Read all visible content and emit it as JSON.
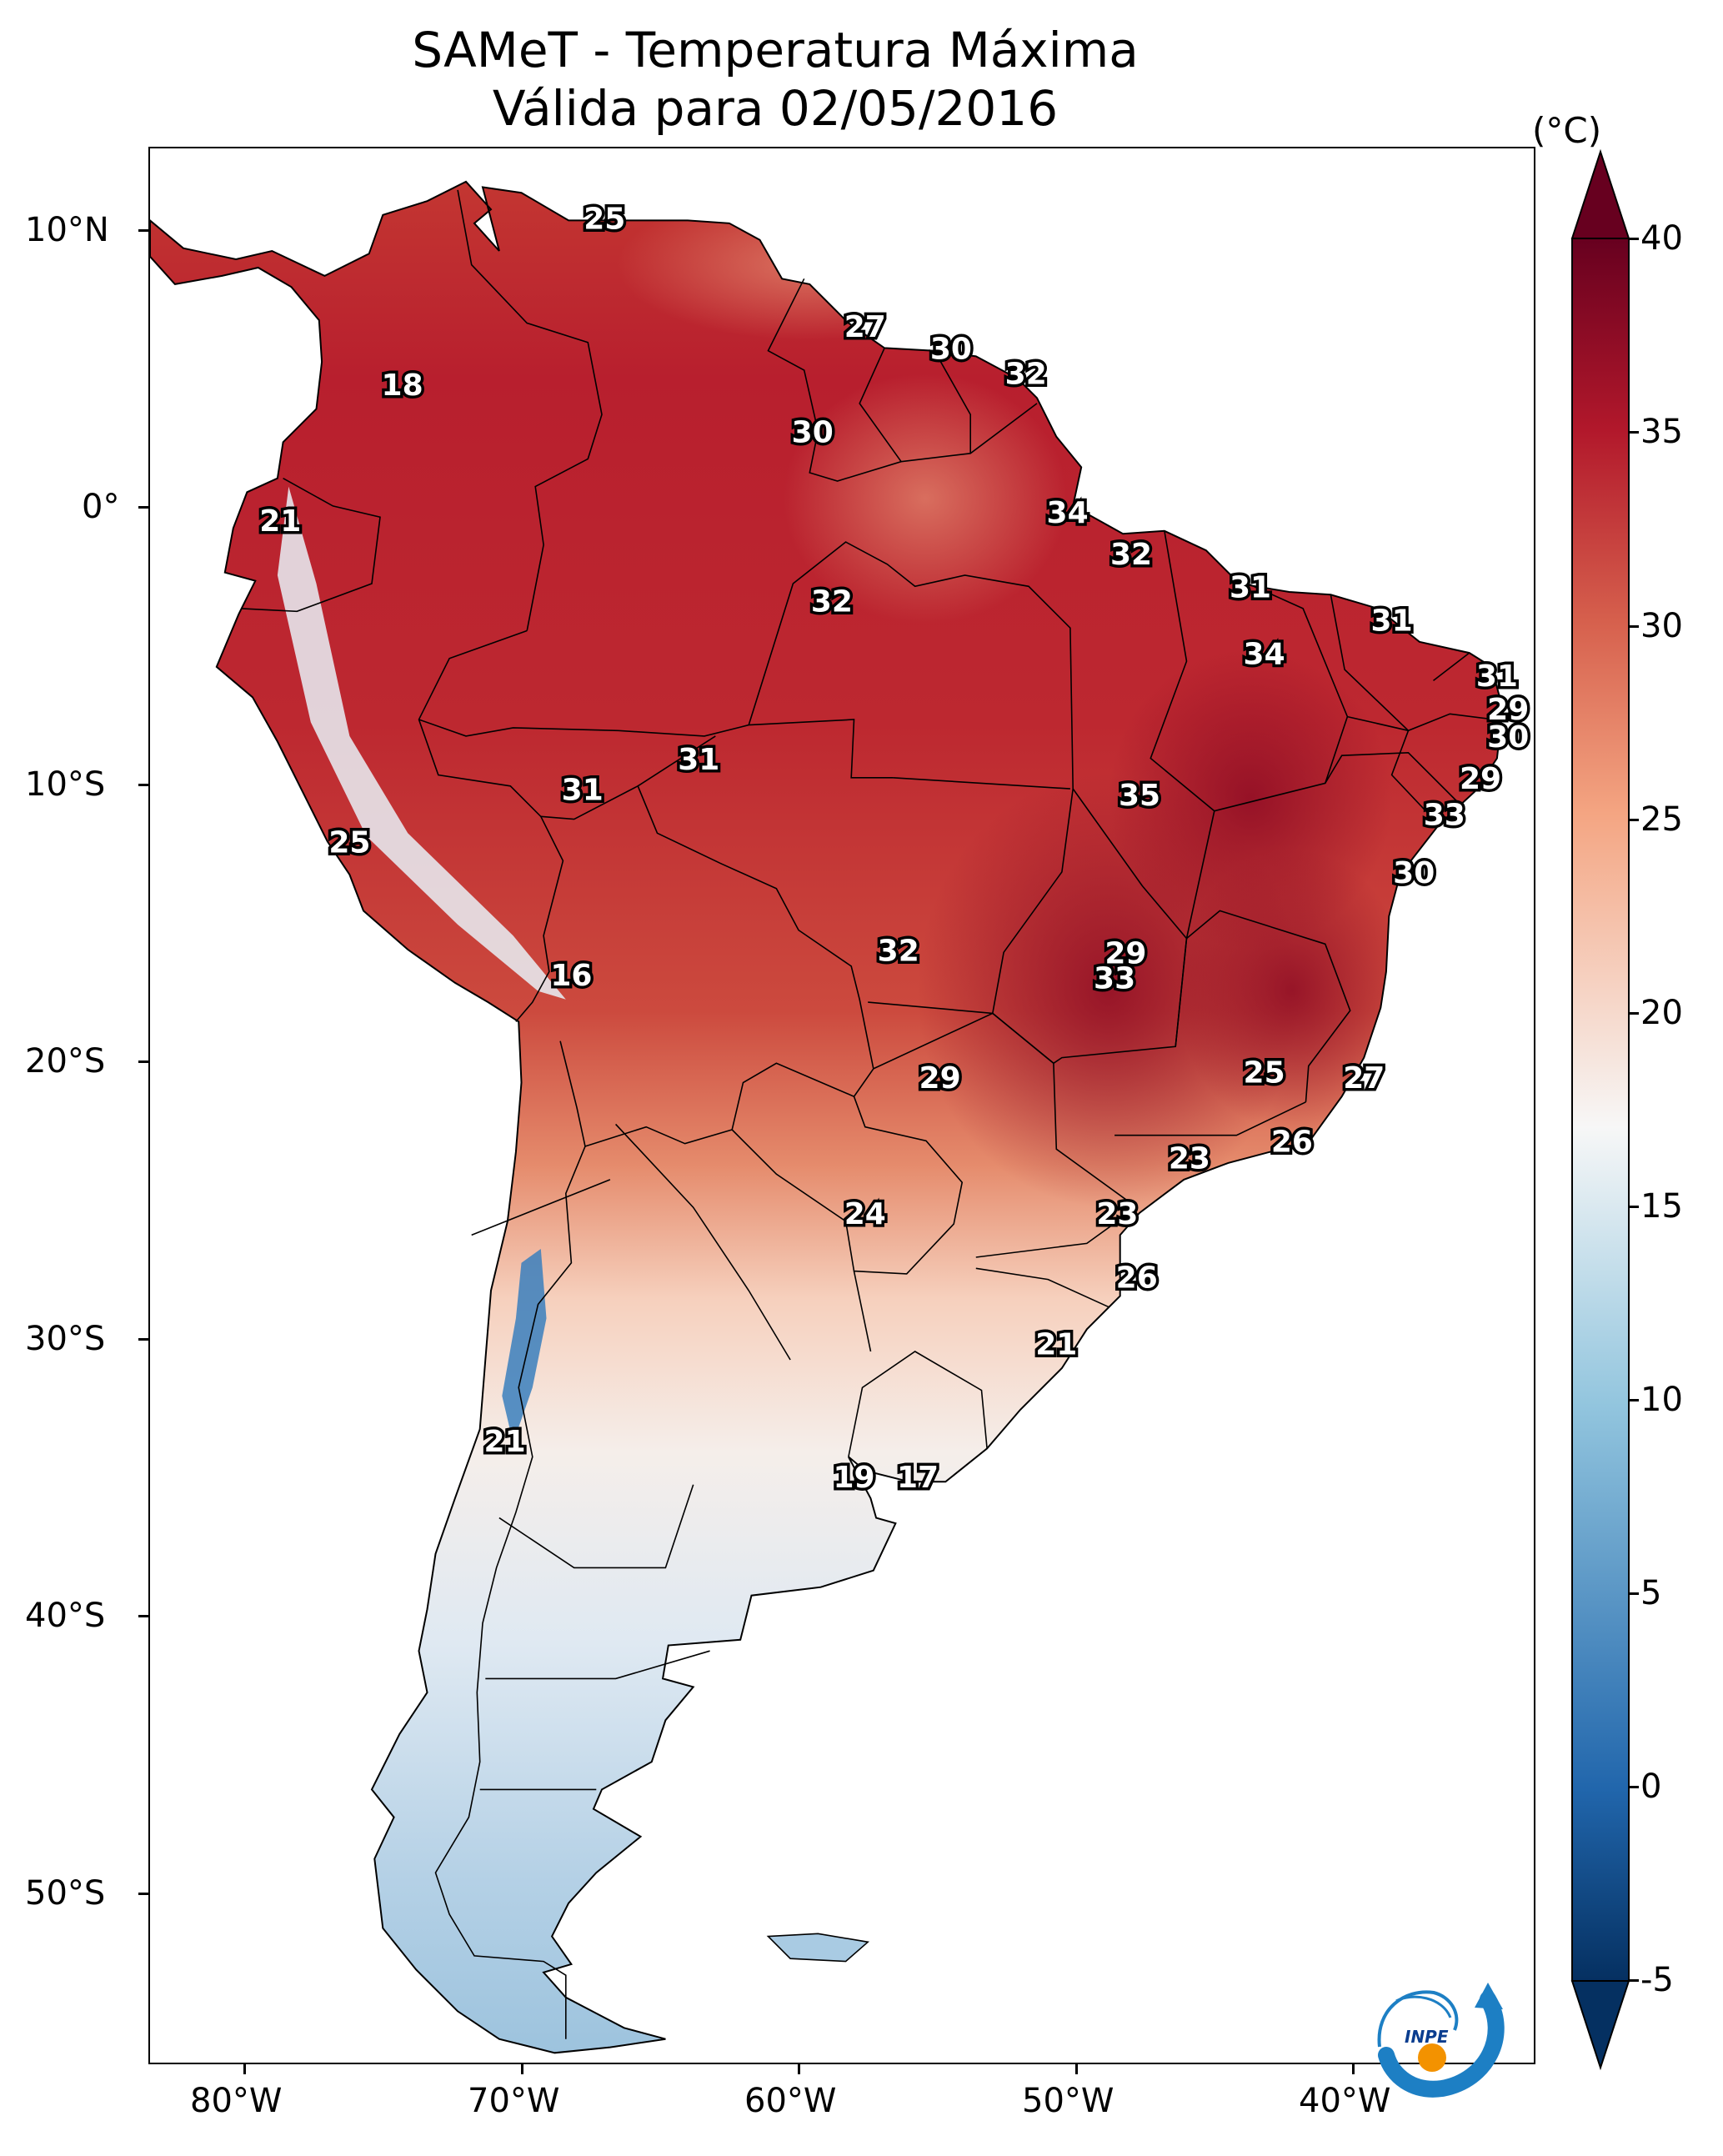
{
  "title_line1": "SAMeT - Temperatura Máxima",
  "title_line2": "Válida para 02/05/2016",
  "colorbar": {
    "unit": "(°C)",
    "ticks": [
      "40",
      "35",
      "30",
      "25",
      "20",
      "15",
      "10",
      "5",
      "0",
      "-5"
    ],
    "range": [
      -5,
      40
    ],
    "extend": "both",
    "colors": {
      "minus5": "#053061",
      "zero": "#2166ac",
      "ten": "#92c5de",
      "seventeen": "#f7f7f7",
      "twentyfive": "#f4a582",
      "thirty": "#d6604d",
      "thirtyfive": "#b2182b",
      "forty": "#67001f"
    }
  },
  "axes": {
    "lat_labels": [
      "10°N",
      "0°",
      "10°S",
      "20°S",
      "30°S",
      "40°S",
      "50°S"
    ],
    "lon_labels": [
      "80°W",
      "70°W",
      "60°W",
      "50°W",
      "40°W"
    ]
  },
  "logo_text": "INPE",
  "point_labels": [
    {
      "value": "25",
      "lon": -67.2,
      "lat": 10.6
    },
    {
      "value": "27",
      "lon": -57.8,
      "lat": 6.7
    },
    {
      "value": "30",
      "lon": -54.7,
      "lat": 5.9
    },
    {
      "value": "32",
      "lon": -52.0,
      "lat": 5.0
    },
    {
      "value": "18",
      "lon": -74.5,
      "lat": 4.6
    },
    {
      "value": "30",
      "lon": -59.7,
      "lat": 2.9
    },
    {
      "value": "34",
      "lon": -50.5,
      "lat": 0.0
    },
    {
      "value": "21",
      "lon": -78.9,
      "lat": -0.3
    },
    {
      "value": "32",
      "lon": -48.2,
      "lat": -1.5
    },
    {
      "value": "31",
      "lon": -43.9,
      "lat": -2.7
    },
    {
      "value": "32",
      "lon": -59.0,
      "lat": -3.2
    },
    {
      "value": "31",
      "lon": -38.8,
      "lat": -3.9
    },
    {
      "value": "34",
      "lon": -43.4,
      "lat": -5.1
    },
    {
      "value": "31",
      "lon": -35.0,
      "lat": -5.9
    },
    {
      "value": "29",
      "lon": -34.6,
      "lat": -7.1
    },
    {
      "value": "30",
      "lon": -34.6,
      "lat": -8.1
    },
    {
      "value": "31",
      "lon": -63.8,
      "lat": -8.9
    },
    {
      "value": "29",
      "lon": -35.6,
      "lat": -9.6
    },
    {
      "value": "31",
      "lon": -68.0,
      "lat": -10.0
    },
    {
      "value": "35",
      "lon": -47.9,
      "lat": -10.2
    },
    {
      "value": "33",
      "lon": -36.9,
      "lat": -10.9
    },
    {
      "value": "25",
      "lon": -76.4,
      "lat": -11.9
    },
    {
      "value": "30",
      "lon": -38.0,
      "lat": -13.0
    },
    {
      "value": "32",
      "lon": -56.6,
      "lat": -15.8
    },
    {
      "value": "29",
      "lon": -48.4,
      "lat": -15.9
    },
    {
      "value": "16",
      "lon": -68.4,
      "lat": -16.7
    },
    {
      "value": "33",
      "lon": -48.8,
      "lat": -16.8
    },
    {
      "value": "29",
      "lon": -55.1,
      "lat": -20.4
    },
    {
      "value": "25",
      "lon": -43.4,
      "lat": -20.2
    },
    {
      "value": "27",
      "lon": -39.8,
      "lat": -20.4
    },
    {
      "value": "26",
      "lon": -42.4,
      "lat": -22.7
    },
    {
      "value": "23",
      "lon": -46.1,
      "lat": -23.3
    },
    {
      "value": "24",
      "lon": -57.8,
      "lat": -25.3
    },
    {
      "value": "23",
      "lon": -48.7,
      "lat": -25.3
    },
    {
      "value": "26",
      "lon": -48.0,
      "lat": -27.6
    },
    {
      "value": "21",
      "lon": -50.9,
      "lat": -30.0
    },
    {
      "value": "21",
      "lon": -70.8,
      "lat": -33.5
    },
    {
      "value": "19",
      "lon": -58.2,
      "lat": -34.8
    },
    {
      "value": "17",
      "lon": -55.9,
      "lat": -34.8
    }
  ]
}
